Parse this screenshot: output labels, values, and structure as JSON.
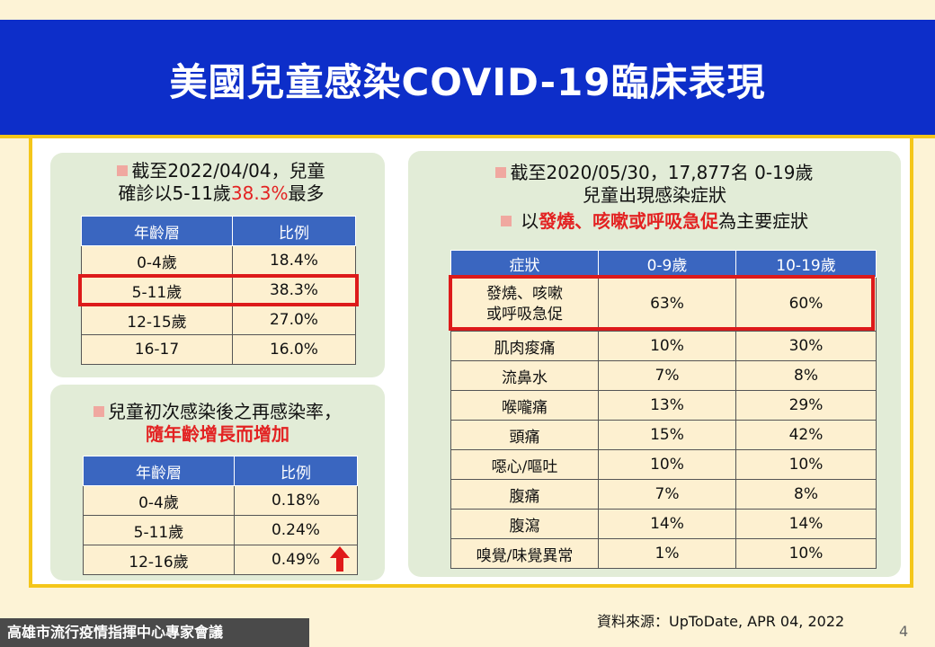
{
  "title": "美國兒童感染COVID-19臨床表現",
  "panel1": {
    "heading_pre": "截至2022/04/04，兒童",
    "heading_line2_pre": "確診以5-11歲",
    "heading_highlight": "38.3%",
    "heading_line2_post": "最多",
    "columns": [
      "年齡層",
      "比例"
    ],
    "rows": [
      [
        "0-4歲",
        "18.4%"
      ],
      [
        "5-11歲",
        "38.3%"
      ],
      [
        "12-15歲",
        "27.0%"
      ],
      [
        "16-17",
        "16.0%"
      ]
    ]
  },
  "panel2": {
    "heading_line1": "兒童初次感染後之再感染率，",
    "heading_line2": "隨年齡增長而增加",
    "columns": [
      "年齡層",
      "比例"
    ],
    "rows": [
      [
        "0-4歲",
        "0.18%"
      ],
      [
        "5-11歲",
        "0.24%"
      ],
      [
        "12-16歲",
        "0.49%"
      ]
    ]
  },
  "panel3": {
    "heading_line1": "截至2020/05/30，17,877名 0-19歲",
    "heading_line2": "兒童出現感染症狀",
    "heading_line3_pre": "以",
    "heading_line3_red": "發燒、咳嗽或呼吸急促",
    "heading_line3_post": "為主要症狀",
    "columns": [
      "症狀",
      "0-9歲",
      "10-19歲"
    ],
    "first_row": {
      "line1": "發燒、咳嗽",
      "line2": "或呼吸急促",
      "v1": "63%",
      "v2": "60%"
    },
    "rows": [
      [
        "肌肉痠痛",
        "10%",
        "30%"
      ],
      [
        "流鼻水",
        "7%",
        "8%"
      ],
      [
        "喉嚨痛",
        "13%",
        "29%"
      ],
      [
        "頭痛",
        "15%",
        "42%"
      ],
      [
        "噁心/嘔吐",
        "10%",
        "10%"
      ],
      [
        "腹痛",
        "7%",
        "8%"
      ],
      [
        "腹瀉",
        "14%",
        "14%"
      ],
      [
        "嗅覺/味覺異常",
        "1%",
        "10%"
      ]
    ]
  },
  "source": "資料來源：UpToDate, APR 04, 2022",
  "footer": "高雄市流行疫情指揮中心專家會議",
  "page_number": "4",
  "colors": {
    "title_bg": "#0d2ec9",
    "accent_gold": "#f4c61a",
    "header_blue": "#3a66c0",
    "highlight_red": "#dd1a1a",
    "panel_green": "#e2ecd7"
  }
}
